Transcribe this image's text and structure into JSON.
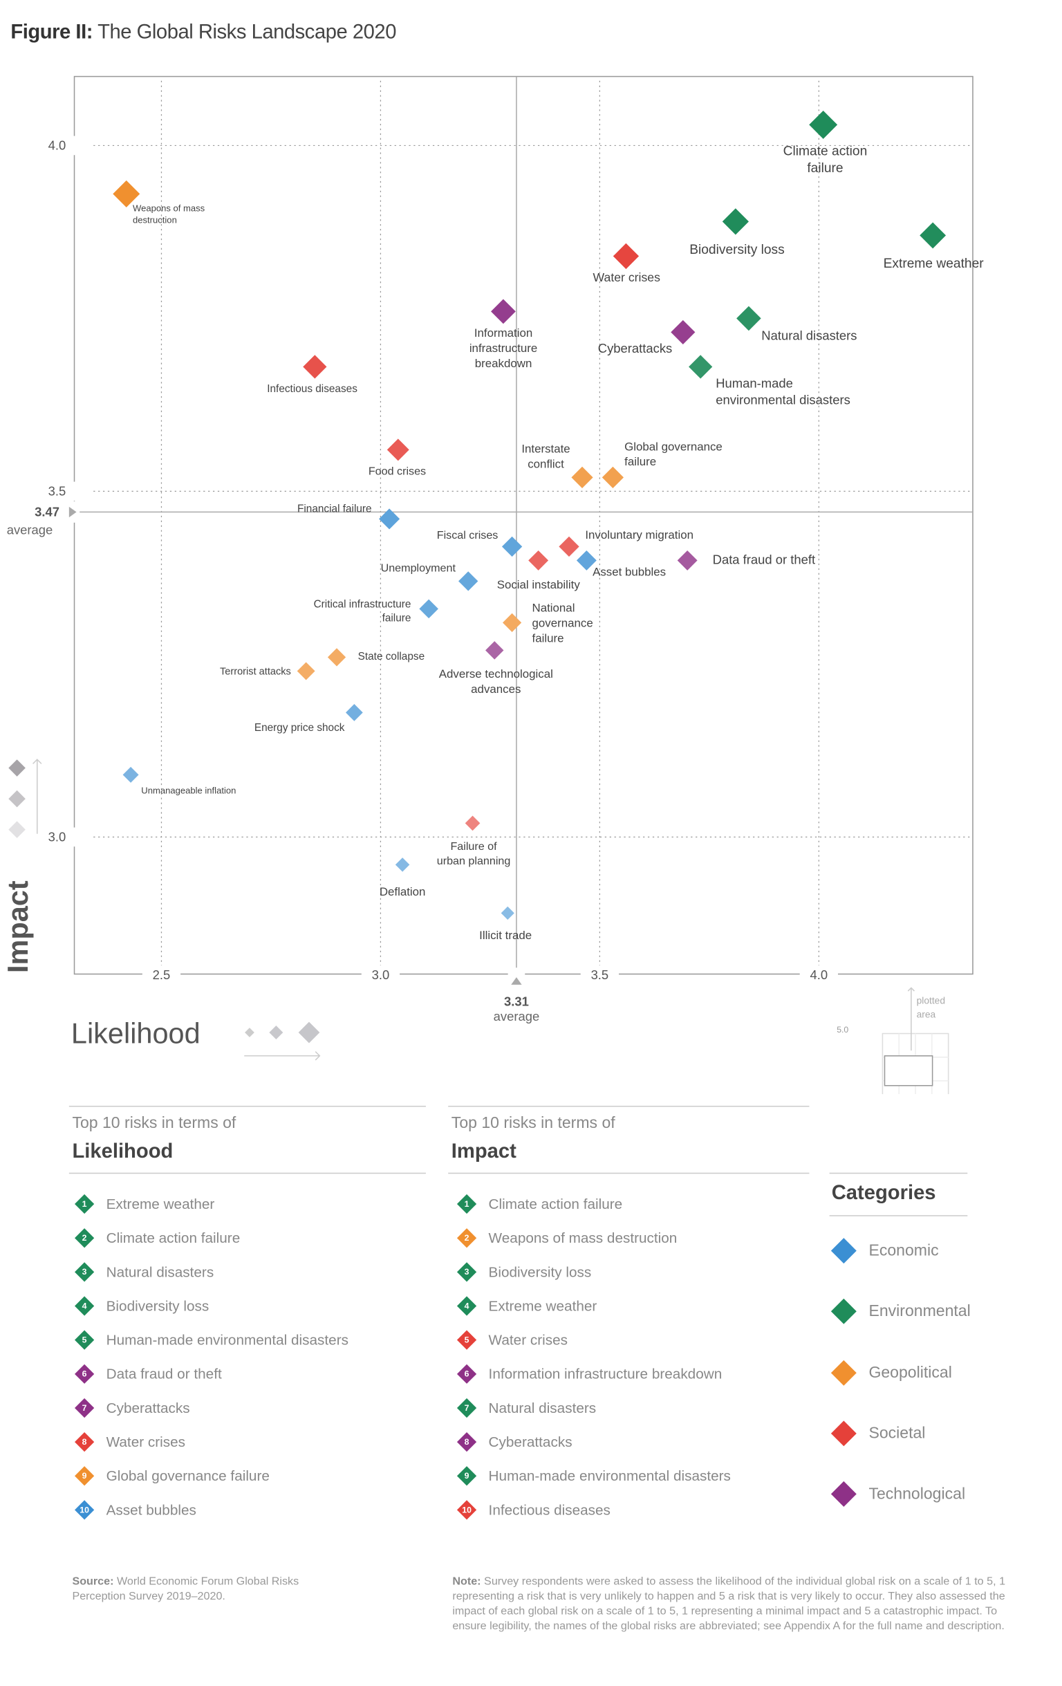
{
  "figure_label": "Figure II:",
  "figure_title": "The Global Risks Landscape 2020",
  "colors": {
    "Economic": "#3b8fd3",
    "Environmental": "#1f8c5a",
    "Geopolitical": "#f0902f",
    "Societal": "#e5413a",
    "Technological": "#8e3187",
    "grid": "#999999",
    "axis": "#888888"
  },
  "chart_data": {
    "type": "scatter",
    "xlabel": "Likelihood",
    "ylabel": "Impact",
    "xlim": [
      2.3,
      4.35
    ],
    "ylim": [
      2.8,
      4.1
    ],
    "x_ticks": [
      "2.5",
      "3.0",
      "3.5",
      "4.0"
    ],
    "y_ticks": [
      "3.0",
      "3.5",
      "4.0"
    ],
    "grid": true,
    "x_average": {
      "value": "3.31",
      "label": "average"
    },
    "y_average": {
      "value": "3.47",
      "label": "average"
    },
    "points": [
      {
        "label": [
          "Climate action",
          "failure"
        ],
        "category": "Environmental",
        "x": 4.01,
        "y": 4.03
      },
      {
        "label": [
          "Extreme weather"
        ],
        "category": "Environmental",
        "x": 4.26,
        "y": 3.87
      },
      {
        "label": [
          "Biodiversity loss"
        ],
        "category": "Environmental",
        "x": 3.81,
        "y": 3.89
      },
      {
        "label": [
          "Water crises"
        ],
        "category": "Societal",
        "x": 3.56,
        "y": 3.84
      },
      {
        "label": [
          "Natural disasters"
        ],
        "category": "Environmental",
        "x": 3.84,
        "y": 3.75
      },
      {
        "label": [
          "Cyberattacks"
        ],
        "category": "Technological",
        "x": 3.69,
        "y": 3.73
      },
      {
        "label": [
          "Human-made",
          "environmental disasters"
        ],
        "category": "Environmental",
        "x": 3.73,
        "y": 3.68
      },
      {
        "label": [
          "Information",
          "infrastructure",
          "breakdown"
        ],
        "category": "Technological",
        "x": 3.28,
        "y": 3.76
      },
      {
        "label": [
          "Weapons of mass",
          "destruction"
        ],
        "category": "Geopolitical",
        "x": 2.42,
        "y": 3.93
      },
      {
        "label": [
          "Infectious diseases"
        ],
        "category": "Societal",
        "x": 2.85,
        "y": 3.68
      },
      {
        "label": [
          "Food crises"
        ],
        "category": "Societal",
        "x": 3.04,
        "y": 3.56
      },
      {
        "label": [
          "Interstate",
          "conflict"
        ],
        "category": "Geopolitical",
        "x": 3.46,
        "y": 3.52
      },
      {
        "label": [
          "Global governance",
          "failure"
        ],
        "category": "Geopolitical",
        "x": 3.53,
        "y": 3.52
      },
      {
        "label": [
          "Financial failure"
        ],
        "category": "Economic",
        "x": 3.02,
        "y": 3.46
      },
      {
        "label": [
          "Fiscal crises"
        ],
        "category": "Economic",
        "x": 3.3,
        "y": 3.42
      },
      {
        "label": [
          "Involuntary migration"
        ],
        "category": "Societal",
        "x": 3.43,
        "y": 3.42
      },
      {
        "label": [
          "Social instability"
        ],
        "category": "Societal",
        "x": 3.36,
        "y": 3.4
      },
      {
        "label": [
          "Asset bubbles"
        ],
        "category": "Economic",
        "x": 3.47,
        "y": 3.4
      },
      {
        "label": [
          "Data fraud or theft"
        ],
        "category": "Technological",
        "x": 3.7,
        "y": 3.4
      },
      {
        "label": [
          "Unemployment"
        ],
        "category": "Economic",
        "x": 3.2,
        "y": 3.37
      },
      {
        "label": [
          "Critical infrastructure",
          "failure"
        ],
        "category": "Economic",
        "x": 3.11,
        "y": 3.33
      },
      {
        "label": [
          "National",
          "governance",
          "failure"
        ],
        "category": "Geopolitical",
        "x": 3.3,
        "y": 3.31
      },
      {
        "label": [
          "Adverse technological",
          "advances"
        ],
        "category": "Technological",
        "x": 3.26,
        "y": 3.27
      },
      {
        "label": [
          "State collapse"
        ],
        "category": "Geopolitical",
        "x": 2.9,
        "y": 3.26
      },
      {
        "label": [
          "Terrorist attacks"
        ],
        "category": "Geopolitical",
        "x": 2.83,
        "y": 3.24
      },
      {
        "label": [
          "Energy price shock"
        ],
        "category": "Economic",
        "x": 2.94,
        "y": 3.18
      },
      {
        "label": [
          "Unmanageable inflation"
        ],
        "category": "Economic",
        "x": 2.43,
        "y": 3.09
      },
      {
        "label": [
          "Failure of",
          "urban planning"
        ],
        "category": "Societal",
        "x": 3.21,
        "y": 3.02
      },
      {
        "label": [
          "Deflation"
        ],
        "category": "Economic",
        "x": 3.05,
        "y": 2.96
      },
      {
        "label": [
          "Illicit trade"
        ],
        "category": "Economic",
        "x": 3.29,
        "y": 2.89
      }
    ]
  },
  "inset": {
    "label": "plotted area",
    "y_max": "5.0",
    "x_min": "1.0",
    "x_max": "5.0"
  },
  "top_likelihood": {
    "pre": "Top 10 risks in terms of",
    "title": "Likelihood",
    "items": [
      {
        "n": "1",
        "name": "Extreme weather",
        "category": "Environmental"
      },
      {
        "n": "2",
        "name": "Climate action failure",
        "category": "Environmental"
      },
      {
        "n": "3",
        "name": "Natural disasters",
        "category": "Environmental"
      },
      {
        "n": "4",
        "name": "Biodiversity loss",
        "category": "Environmental"
      },
      {
        "n": "5",
        "name": "Human-made environmental disasters",
        "category": "Environmental"
      },
      {
        "n": "6",
        "name": "Data fraud or theft",
        "category": "Technological"
      },
      {
        "n": "7",
        "name": "Cyberattacks",
        "category": "Technological"
      },
      {
        "n": "8",
        "name": "Water crises",
        "category": "Societal"
      },
      {
        "n": "9",
        "name": "Global governance failure",
        "category": "Geopolitical"
      },
      {
        "n": "10",
        "name": "Asset bubbles",
        "category": "Economic"
      }
    ]
  },
  "top_impact": {
    "pre": "Top 10 risks in terms of",
    "title": "Impact",
    "items": [
      {
        "n": "1",
        "name": "Climate action failure",
        "category": "Environmental"
      },
      {
        "n": "2",
        "name": "Weapons of mass destruction",
        "category": "Geopolitical"
      },
      {
        "n": "3",
        "name": "Biodiversity loss",
        "category": "Environmental"
      },
      {
        "n": "4",
        "name": "Extreme weather",
        "category": "Environmental"
      },
      {
        "n": "5",
        "name": "Water crises",
        "category": "Societal"
      },
      {
        "n": "6",
        "name": "Information infrastructure breakdown",
        "category": "Technological"
      },
      {
        "n": "7",
        "name": "Natural disasters",
        "category": "Environmental"
      },
      {
        "n": "8",
        "name": "Cyberattacks",
        "category": "Technological"
      },
      {
        "n": "9",
        "name": "Human-made environmental disasters",
        "category": "Environmental"
      },
      {
        "n": "10",
        "name": "Infectious diseases",
        "category": "Societal"
      }
    ]
  },
  "categories": {
    "title": "Categories",
    "items": [
      "Economic",
      "Environmental",
      "Geopolitical",
      "Societal",
      "Technological"
    ]
  },
  "source": {
    "label": "Source:",
    "text": "World Economic Forum Global Risks Perception Survey 2019–2020."
  },
  "note": {
    "label": "Note:",
    "text": "Survey respondents were asked to assess the likelihood of the individual global risk on a scale of 1 to 5, 1 representing a risk that is very unlikely to happen and 5 a risk that is very likely to occur. They also assessed the impact of each global risk on a scale of 1 to 5, 1 representing a minimal impact and 5 a catastrophic impact. To ensure legibility, the names of the global risks are abbreviated; see Appendix A for the full name and description."
  }
}
